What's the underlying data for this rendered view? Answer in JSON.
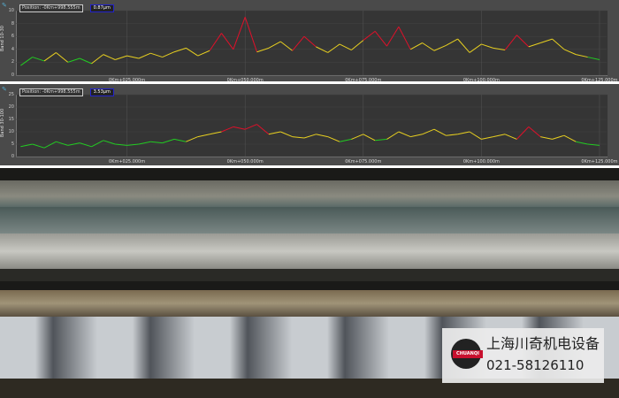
{
  "charts_meta": {
    "top": {
      "position": "Position: -0Km+998.555m",
      "value": "0.87µm",
      "ylabel": "Band 10-30",
      "yticks": [
        "10",
        "8",
        "6",
        "4",
        "2",
        "0"
      ]
    },
    "bottom": {
      "position": "Position: -0Km+998.555m",
      "value": "3.53µm",
      "ylabel": "Band 30-100",
      "yticks": [
        "25",
        "20",
        "15",
        "10",
        "5",
        "0"
      ]
    },
    "xticks": [
      "0Km+025.000m",
      "0Km+050.000m",
      "0Km+075.000m",
      "0Km+100.000m",
      "0Km+125.000m"
    ]
  },
  "chart_data": [
    {
      "type": "line",
      "ylabel": "Band 10-30",
      "ylim": [
        0,
        10
      ],
      "xlim": [
        1.5,
        126.5
      ],
      "grid": true,
      "colors": {
        "low": "#22cc22",
        "mid": "#e8d020",
        "high": "#e0102a"
      },
      "x_start": 2.5,
      "x_step": 2.5,
      "values": [
        1.5,
        2.8,
        2.2,
        3.5,
        2.0,
        2.6,
        1.8,
        3.2,
        2.4,
        3.0,
        2.6,
        3.4,
        2.8,
        3.6,
        4.2,
        3.0,
        3.8,
        6.5,
        4.0,
        9.0,
        3.6,
        4.2,
        5.2,
        3.8,
        6.0,
        4.4,
        3.5,
        4.8,
        3.9,
        5.4,
        6.8,
        4.5,
        7.5,
        4.0,
        5.0,
        3.8,
        4.6,
        5.6,
        3.5,
        4.8,
        4.2,
        3.9,
        6.2,
        4.4,
        5.0,
        5.6,
        4.0,
        3.2,
        2.8,
        2.4
      ]
    },
    {
      "type": "line",
      "ylabel": "Band 30-100",
      "ylim": [
        0,
        25
      ],
      "xlim": [
        1.5,
        126.5
      ],
      "grid": true,
      "colors": {
        "low": "#22cc22",
        "mid": "#e8d020",
        "high": "#e0102a"
      },
      "x_start": 2.5,
      "x_step": 2.5,
      "values": [
        4,
        5,
        3.5,
        6,
        4.5,
        5.5,
        4,
        6.5,
        5,
        4.5,
        5,
        6,
        5.5,
        7,
        6,
        8,
        9,
        10,
        12,
        11,
        13,
        9,
        10,
        8,
        7.5,
        9,
        8,
        6,
        7,
        9,
        6.5,
        7,
        10,
        8,
        9,
        11,
        8.5,
        9,
        10,
        7,
        8,
        9,
        7,
        12,
        8,
        7,
        8.5,
        6,
        5,
        4.5
      ]
    }
  ],
  "watermark": {
    "company": "上海川奇机电设备",
    "phone": "021-58126110",
    "logo_text": "CHUANQI"
  }
}
